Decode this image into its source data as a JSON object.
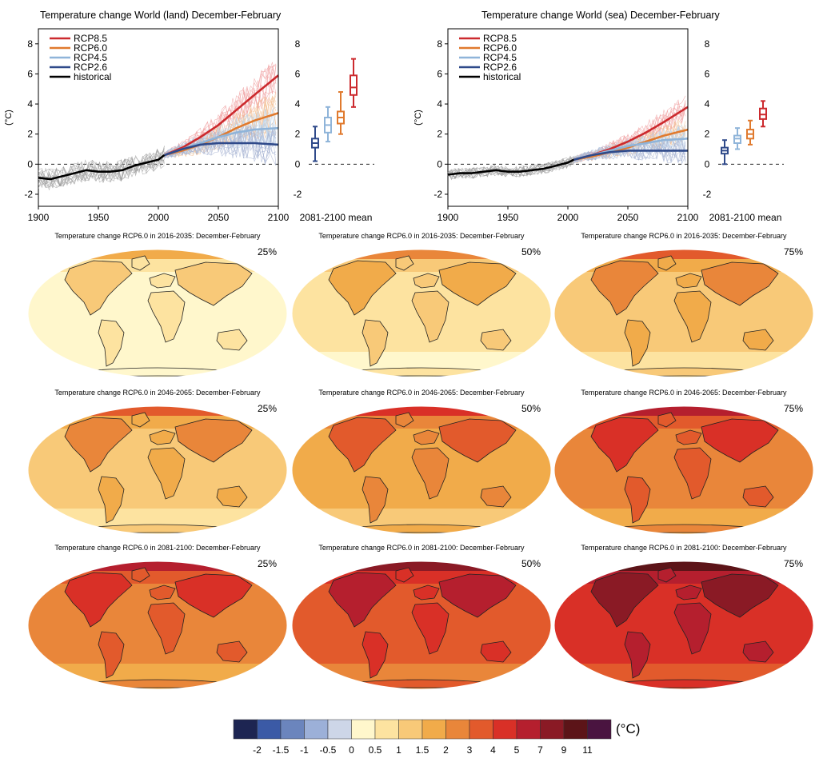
{
  "chart_data": [
    {
      "type": "line",
      "title": "Temperature change World (land) December-February",
      "xlabel": "",
      "ylabel": "(°C)",
      "xlim": [
        1900,
        2100
      ],
      "ylim": [
        -2.8,
        9
      ],
      "x_ticks": [
        1900,
        1950,
        2000,
        2050,
        2100
      ],
      "y_ticks": [
        -2,
        0,
        2,
        4,
        6,
        8
      ],
      "legend_position": "top-left",
      "grid": false,
      "boxplot_label": "2081-2100 mean",
      "series": [
        {
          "name": "RCP8.5",
          "color": "#cc2a2e",
          "x": [
            2005,
            2020,
            2035,
            2050,
            2065,
            2080,
            2100
          ],
          "y": [
            0.6,
            1.1,
            1.8,
            2.6,
            3.6,
            4.6,
            5.9
          ]
        },
        {
          "name": "RCP6.0",
          "color": "#e07a2e",
          "x": [
            2005,
            2020,
            2035,
            2050,
            2065,
            2080,
            2100
          ],
          "y": [
            0.6,
            0.9,
            1.3,
            1.8,
            2.4,
            2.9,
            3.4
          ]
        },
        {
          "name": "RCP4.5",
          "color": "#8fb4d9",
          "x": [
            2005,
            2020,
            2035,
            2050,
            2065,
            2080,
            2100
          ],
          "y": [
            0.6,
            1.0,
            1.4,
            1.8,
            2.1,
            2.3,
            2.4
          ]
        },
        {
          "name": "RCP2.6",
          "color": "#2f4a8a",
          "x": [
            2005,
            2020,
            2035,
            2050,
            2065,
            2080,
            2100
          ],
          "y": [
            0.6,
            1.0,
            1.3,
            1.4,
            1.4,
            1.4,
            1.3
          ]
        },
        {
          "name": "historical",
          "color": "#000000",
          "x": [
            1900,
            1910,
            1920,
            1930,
            1940,
            1950,
            1960,
            1970,
            1980,
            1990,
            2000,
            2005
          ],
          "y": [
            -0.9,
            -1.0,
            -0.8,
            -0.6,
            -0.4,
            -0.5,
            -0.5,
            -0.4,
            -0.1,
            0.1,
            0.3,
            0.6
          ]
        }
      ],
      "boxes": [
        {
          "name": "RCP2.6",
          "color": "#2f4a8a",
          "min": 0.2,
          "q1": 1.1,
          "median": 1.4,
          "q3": 1.7,
          "max": 2.5
        },
        {
          "name": "RCP4.5",
          "color": "#8fb4d9",
          "min": 1.5,
          "q1": 2.1,
          "median": 2.6,
          "q3": 3.1,
          "max": 3.8
        },
        {
          "name": "RCP6.0",
          "color": "#e07a2e",
          "min": 2.0,
          "q1": 2.7,
          "median": 3.1,
          "q3": 3.5,
          "max": 4.8
        },
        {
          "name": "RCP8.5",
          "color": "#cc2a2e",
          "min": 3.8,
          "q1": 4.6,
          "median": 5.1,
          "q3": 5.9,
          "max": 7.0
        }
      ]
    },
    {
      "type": "line",
      "title": "Temperature change World (sea) December-February",
      "xlabel": "",
      "ylabel": "(°C)",
      "xlim": [
        1900,
        2100
      ],
      "ylim": [
        -2.8,
        9
      ],
      "x_ticks": [
        1900,
        1950,
        2000,
        2050,
        2100
      ],
      "y_ticks": [
        -2,
        0,
        2,
        4,
        6,
        8
      ],
      "legend_position": "top-left",
      "grid": false,
      "boxplot_label": "2081-2100 mean",
      "series": [
        {
          "name": "RCP8.5",
          "color": "#cc2a2e",
          "x": [
            2005,
            2020,
            2035,
            2050,
            2065,
            2080,
            2100
          ],
          "y": [
            0.3,
            0.6,
            1.0,
            1.5,
            2.1,
            2.8,
            3.8
          ]
        },
        {
          "name": "RCP6.0",
          "color": "#e07a2e",
          "x": [
            2005,
            2020,
            2035,
            2050,
            2065,
            2080,
            2100
          ],
          "y": [
            0.3,
            0.5,
            0.8,
            1.1,
            1.5,
            1.9,
            2.3
          ]
        },
        {
          "name": "RCP4.5",
          "color": "#8fb4d9",
          "x": [
            2005,
            2020,
            2035,
            2050,
            2065,
            2080,
            2100
          ],
          "y": [
            0.3,
            0.6,
            0.9,
            1.2,
            1.4,
            1.6,
            1.7
          ]
        },
        {
          "name": "RCP2.6",
          "color": "#2f4a8a",
          "x": [
            2005,
            2020,
            2035,
            2050,
            2065,
            2080,
            2100
          ],
          "y": [
            0.3,
            0.6,
            0.8,
            0.9,
            0.9,
            0.9,
            0.9
          ]
        },
        {
          "name": "historical",
          "color": "#000000",
          "x": [
            1900,
            1910,
            1920,
            1930,
            1940,
            1950,
            1960,
            1970,
            1980,
            1990,
            2000,
            2005
          ],
          "y": [
            -0.7,
            -0.6,
            -0.6,
            -0.5,
            -0.4,
            -0.5,
            -0.5,
            -0.4,
            -0.3,
            -0.1,
            0.1,
            0.3
          ]
        }
      ],
      "boxes": [
        {
          "name": "RCP2.6",
          "color": "#2f4a8a",
          "min": 0.0,
          "q1": 0.7,
          "median": 0.9,
          "q3": 1.1,
          "max": 1.6
        },
        {
          "name": "RCP4.5",
          "color": "#8fb4d9",
          "min": 1.0,
          "q1": 1.4,
          "median": 1.7,
          "q3": 1.9,
          "max": 2.4
        },
        {
          "name": "RCP6.0",
          "color": "#e07a2e",
          "min": 1.3,
          "q1": 1.7,
          "median": 2.0,
          "q3": 2.3,
          "max": 2.9
        },
        {
          "name": "RCP8.5",
          "color": "#cc2a2e",
          "min": 2.5,
          "q1": 3.0,
          "median": 3.3,
          "q3": 3.7,
          "max": 4.2
        }
      ]
    }
  ],
  "maps": {
    "rows": [
      {
        "title": "Temperature change RCP6.0 in 2016-2035: December-February",
        "panels": [
          {
            "percentile": "25%",
            "level": 0
          },
          {
            "percentile": "50%",
            "level": 1
          },
          {
            "percentile": "75%",
            "level": 2
          }
        ]
      },
      {
        "title": "Temperature change RCP6.0 in 2046-2065: December-February",
        "panels": [
          {
            "percentile": "25%",
            "level": 2
          },
          {
            "percentile": "50%",
            "level": 3
          },
          {
            "percentile": "75%",
            "level": 4
          }
        ]
      },
      {
        "title": "Temperature change RCP6.0 in 2081-2100: December-February",
        "panels": [
          {
            "percentile": "25%",
            "level": 4
          },
          {
            "percentile": "50%",
            "level": 5
          },
          {
            "percentile": "75%",
            "level": 6
          }
        ]
      }
    ]
  },
  "colorbar": {
    "unit": "(°C)",
    "colors": [
      "#1d2552",
      "#3b5aa6",
      "#6b85bd",
      "#9cb0d8",
      "#cdd6e8",
      "#fff7cc",
      "#fde3a0",
      "#f8c978",
      "#f1ab4a",
      "#e9863a",
      "#e25a2c",
      "#d93027",
      "#b51f2e",
      "#8a1a25",
      "#5c1418",
      "#4a1440"
    ],
    "ticks": [
      "-2",
      "-1.5",
      "-1",
      "-0.5",
      "0",
      "0.5",
      "1",
      "1.5",
      "2",
      "3",
      "4",
      "5",
      "7",
      "9",
      "11"
    ]
  }
}
